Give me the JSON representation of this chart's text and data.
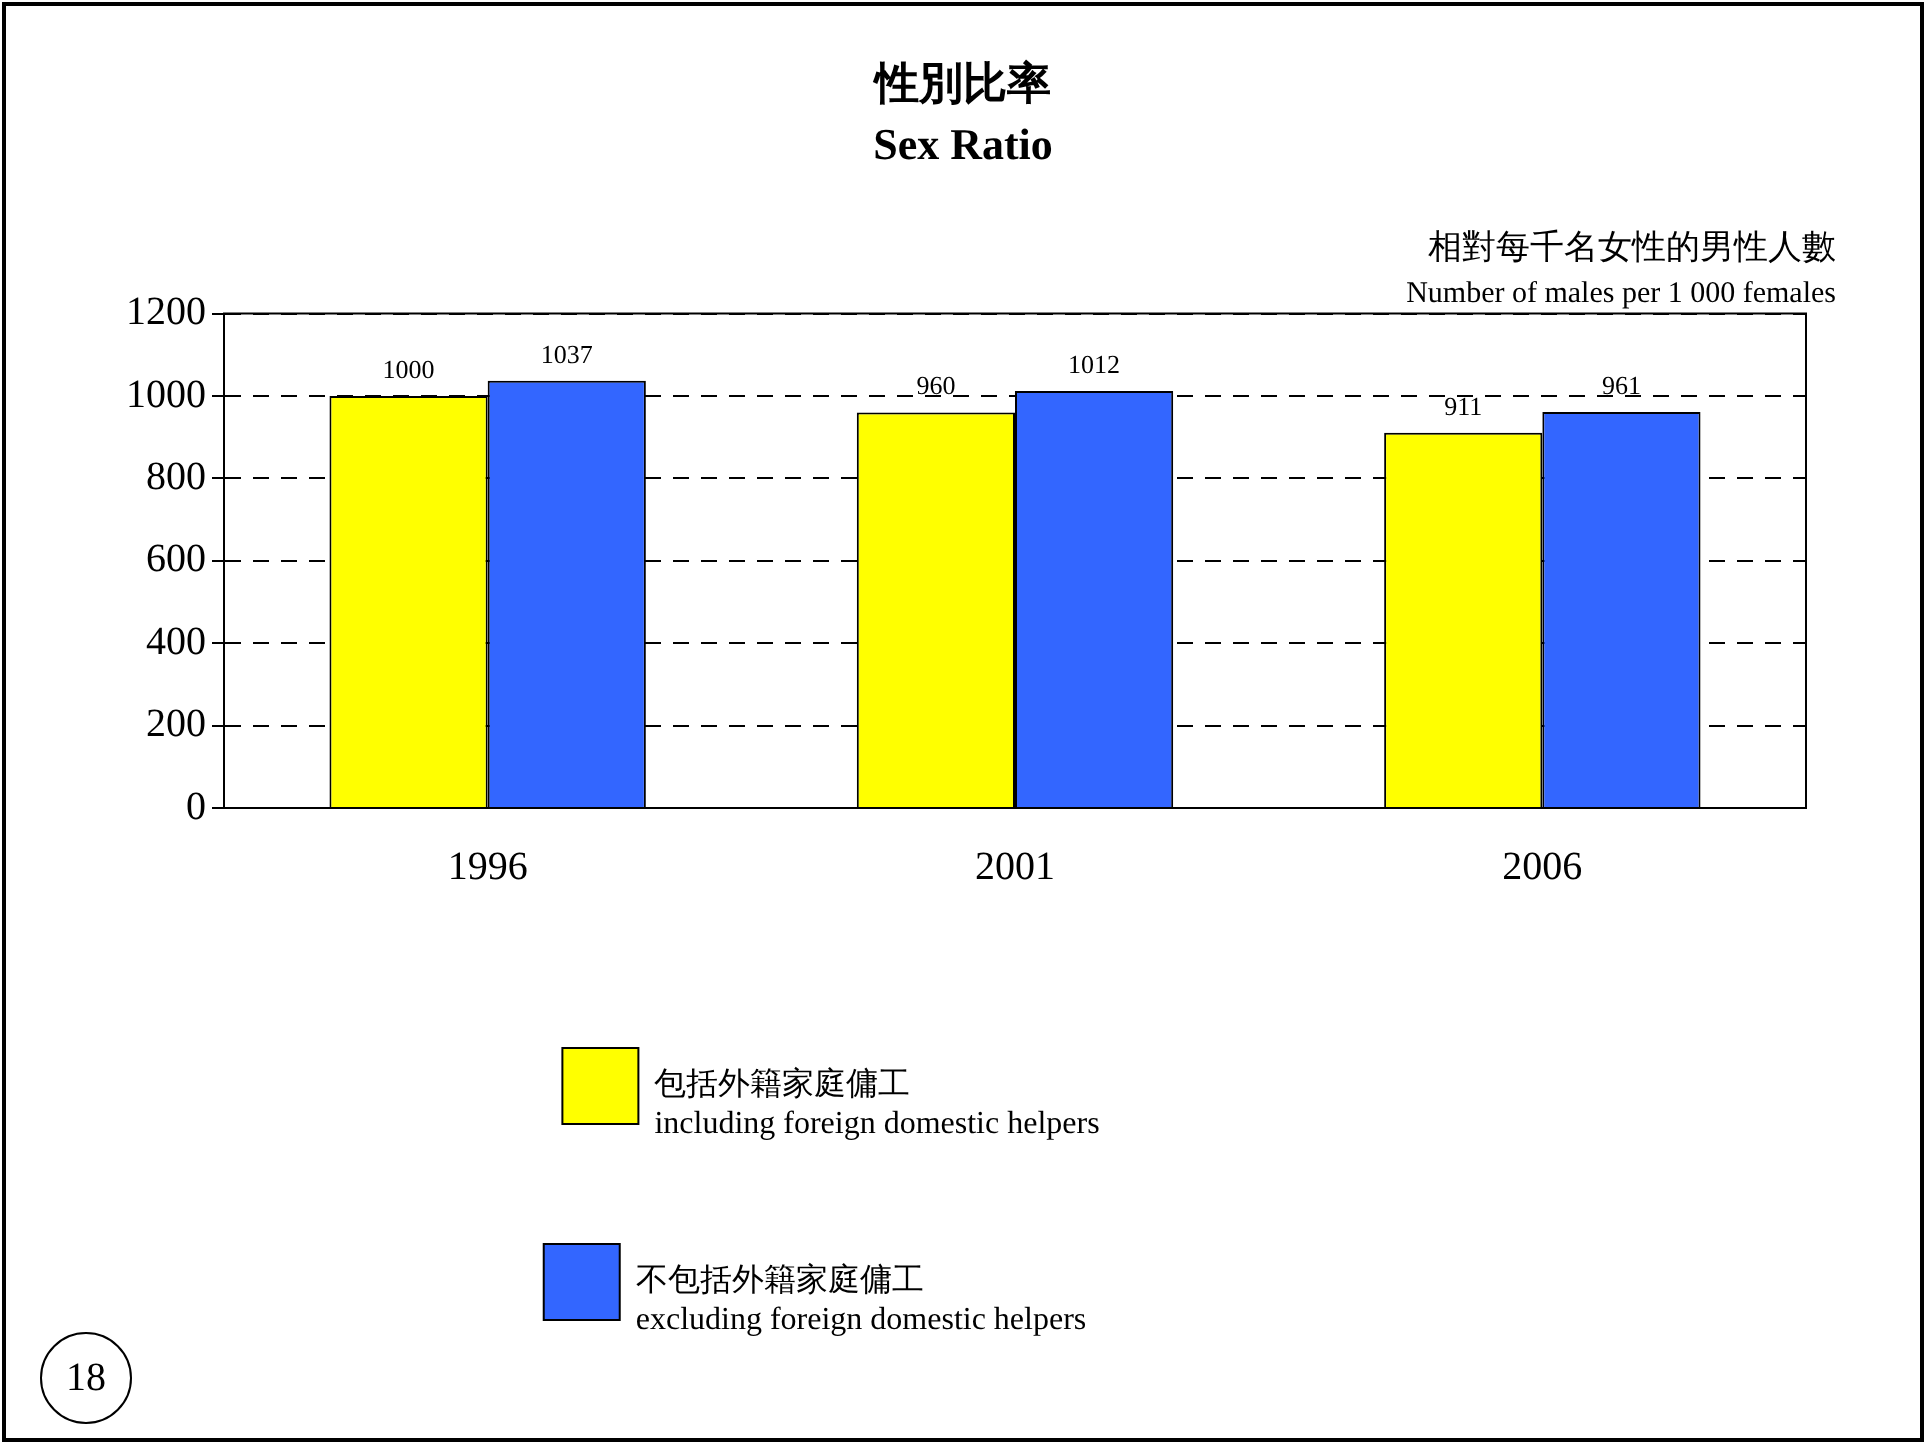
{
  "chart_data": {
    "type": "bar",
    "title": "性別比率",
    "subtitle": "Sex Ratio",
    "ylabel": "相對每千名女性的男性人數\nNumber of males per 1 000 females",
    "categories": [
      "1996",
      "2001",
      "2006"
    ],
    "series": [
      {
        "name": "包括外籍家庭傭工\nincluding foreign domestic helpers",
        "color": "#ffff00",
        "values": [
          1000,
          960,
          911
        ]
      },
      {
        "name": "不包括外籍家庭傭工\nexcluding foreign domestic helpers",
        "color": "#3366ff",
        "values": [
          1037,
          1012,
          961
        ]
      }
    ],
    "ylim": [
      0,
      1200
    ],
    "yticks": [
      0,
      200,
      400,
      600,
      800,
      1000,
      1200
    ],
    "grid": "y",
    "legend": "bottom",
    "data_labels": true,
    "annotations": [
      "18"
    ]
  }
}
